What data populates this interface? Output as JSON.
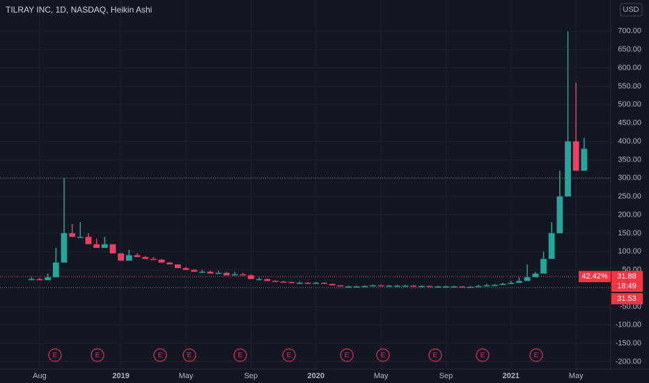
{
  "chart_data": {
    "type": "candlestick",
    "title": "TILRAY INC, 1D, NASDAQ, Heikin Ashi",
    "currency": "USD",
    "up_color": "#26a69a",
    "down_color": "#ef3f62",
    "grid": true,
    "categories": [
      null,
      "Aug",
      null,
      null,
      null,
      null,
      null,
      null,
      null,
      null,
      null,
      "2019",
      null,
      null,
      null,
      null,
      null,
      null,
      null,
      "May",
      null,
      null,
      null,
      null,
      null,
      null,
      null,
      "Sep",
      null,
      null,
      null,
      null,
      null,
      null,
      null,
      "2020",
      null,
      null,
      null,
      null,
      null,
      null,
      null,
      "May",
      null,
      null,
      null,
      null,
      null,
      null,
      null,
      "Sep",
      null,
      null,
      null,
      null,
      null,
      null,
      null,
      "2021",
      null,
      null,
      null,
      null,
      null,
      null,
      null,
      "May",
      null
    ],
    "values": [
      25,
      22,
      30,
      70,
      150,
      140,
      140,
      120,
      110,
      120,
      95,
      75,
      90,
      85,
      80,
      78,
      70,
      65,
      55,
      50,
      45,
      45,
      40,
      42,
      35,
      38,
      35,
      25,
      25,
      20,
      18,
      17,
      15,
      15,
      14,
      15,
      12,
      8,
      5,
      5,
      5,
      6,
      8,
      7,
      7,
      7,
      7,
      6,
      6,
      5,
      5,
      5,
      5,
      4,
      4,
      6,
      8,
      9,
      12,
      15,
      20,
      30,
      40,
      80,
      150,
      250,
      400,
      320,
      380
    ],
    "highs": [
      30,
      28,
      40,
      110,
      300,
      175,
      180,
      150,
      135,
      140,
      120,
      95,
      105,
      95,
      88,
      85,
      80,
      72,
      65,
      58,
      52,
      50,
      48,
      48,
      45,
      45,
      42,
      38,
      30,
      26,
      22,
      20,
      18,
      18,
      17,
      17,
      16,
      12,
      8,
      7,
      7,
      8,
      10,
      10,
      9,
      9,
      9,
      9,
      8,
      7,
      7,
      7,
      7,
      6,
      6,
      9,
      12,
      12,
      15,
      20,
      30,
      65,
      45,
      100,
      180,
      320,
      700,
      560,
      410
    ],
    "ylim": [
      -220,
      785
    ],
    "yticks": [
      {
        "value": -200,
        "label": "-200.00"
      },
      {
        "value": -150,
        "label": "-150.00"
      },
      {
        "value": -100,
        "label": "-100.00"
      },
      {
        "value": -50,
        "label": "-50.00"
      },
      {
        "value": 50,
        "label": "50.00"
      },
      {
        "value": 100,
        "label": "100.00"
      },
      {
        "value": 150,
        "label": "150.00"
      },
      {
        "value": 200,
        "label": "200.00"
      },
      {
        "value": 250,
        "label": "250.00"
      },
      {
        "value": 300,
        "label": "300.00"
      },
      {
        "value": 350,
        "label": "350.00"
      },
      {
        "value": 400,
        "label": "400.00"
      },
      {
        "value": 450,
        "label": "450.00"
      },
      {
        "value": 500,
        "label": "500.00"
      },
      {
        "value": 550,
        "label": "550.00"
      },
      {
        "value": 600,
        "label": "600.00"
      },
      {
        "value": 650,
        "label": "650.00"
      },
      {
        "value": 700,
        "label": "700.00"
      }
    ],
    "alert_level": 300,
    "last_price": 31.88,
    "change_label": "42.42%",
    "countdown": "18:49",
    "prev_label": "31.53",
    "events": [
      "E",
      "E",
      "E",
      "E",
      "E",
      "E",
      "E",
      "E",
      "E",
      "E",
      "E"
    ]
  }
}
